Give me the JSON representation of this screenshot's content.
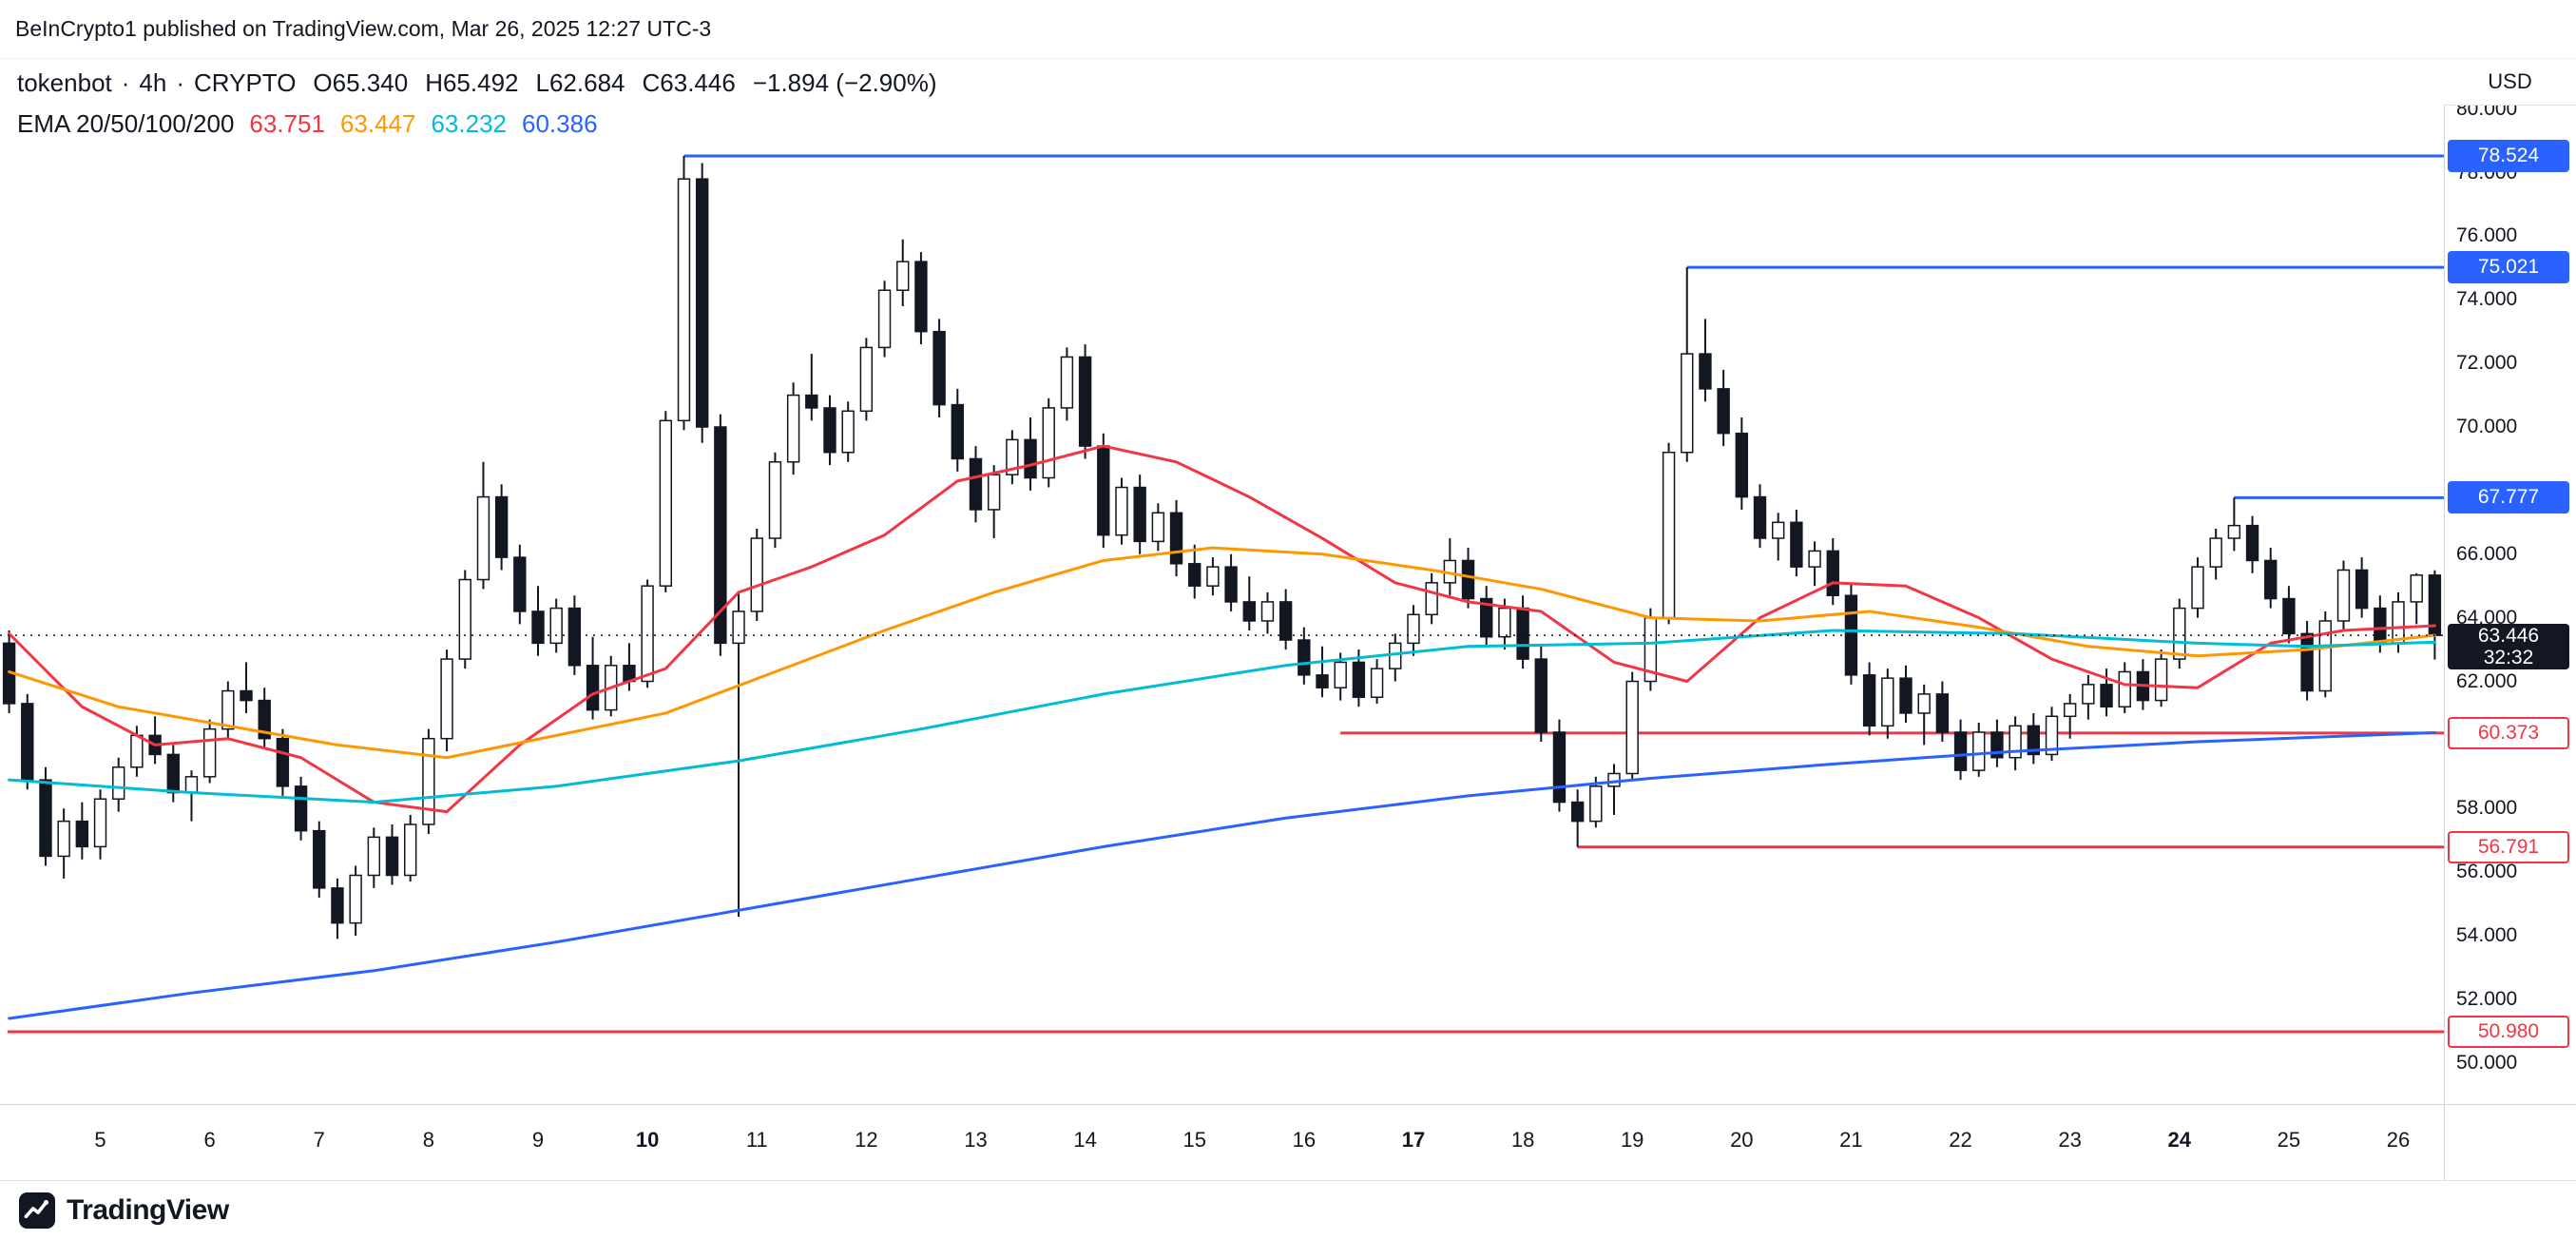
{
  "topbar": {
    "text": "BeInCrypto1 published on TradingView.com, Mar 26, 2025 12:27 UTC-3"
  },
  "legend": {
    "symbol": "tokenbot",
    "separator": "·",
    "interval": "4h",
    "market": "CRYPTO",
    "o_label": "O",
    "o": "65.340",
    "h_label": "H",
    "h": "65.492",
    "l_label": "L",
    "l": "62.684",
    "c_label": "C",
    "c": "63.446",
    "change": "−1.894 (−2.90%)",
    "ema_title": "EMA 20/50/100/200"
  },
  "axis": {
    "currency": "USD"
  },
  "footer": {
    "brand": "TradingView"
  },
  "chart_data": {
    "type": "candlestick",
    "symbol": "tokenbot",
    "interval": "4h",
    "market": "CRYPTO",
    "colors": {
      "ink": "#131722",
      "up_fill": "#FFFFFF",
      "resistance": "#2962FF",
      "support": "#F23645"
    },
    "y_axis": {
      "domain_top": 81.574,
      "domain_bottom": 48.707,
      "ticks": [
        80,
        78,
        76,
        74,
        72,
        70,
        66,
        64,
        62,
        58,
        56,
        54,
        52,
        50
      ]
    },
    "x_axis": {
      "days": [
        {
          "label": "5",
          "index": 5,
          "bold": false
        },
        {
          "label": "6",
          "index": 11,
          "bold": false
        },
        {
          "label": "7",
          "index": 17,
          "bold": false
        },
        {
          "label": "8",
          "index": 23,
          "bold": false
        },
        {
          "label": "9",
          "index": 29,
          "bold": false
        },
        {
          "label": "10",
          "index": 35,
          "bold": true
        },
        {
          "label": "11",
          "index": 41,
          "bold": false
        },
        {
          "label": "12",
          "index": 47,
          "bold": false
        },
        {
          "label": "13",
          "index": 53,
          "bold": false
        },
        {
          "label": "14",
          "index": 59,
          "bold": false
        },
        {
          "label": "15",
          "index": 65,
          "bold": false
        },
        {
          "label": "16",
          "index": 71,
          "bold": false
        },
        {
          "label": "17",
          "index": 77,
          "bold": true
        },
        {
          "label": "18",
          "index": 83,
          "bold": false
        },
        {
          "label": "19",
          "index": 89,
          "bold": false
        },
        {
          "label": "20",
          "index": 95,
          "bold": false
        },
        {
          "label": "21",
          "index": 101,
          "bold": false
        },
        {
          "label": "22",
          "index": 107,
          "bold": false
        },
        {
          "label": "23",
          "index": 113,
          "bold": false
        },
        {
          "label": "24",
          "index": 119,
          "bold": true
        },
        {
          "label": "25",
          "index": 125,
          "bold": false
        },
        {
          "label": "26",
          "index": 131,
          "bold": false
        }
      ]
    },
    "current_price": {
      "value": 63.446,
      "label": "63.446",
      "countdown": "32:32"
    },
    "ohlc_current": {
      "open": 65.34,
      "high": 65.492,
      "low": 62.684,
      "close": 63.446,
      "change": -1.894,
      "change_pct": -2.9
    },
    "levels": [
      {
        "price": 78.524,
        "label": "78.524",
        "kind": "resistance",
        "start_index": 37
      },
      {
        "price": 75.021,
        "label": "75.021",
        "kind": "resistance",
        "start_index": 92
      },
      {
        "price": 67.777,
        "label": "67.777",
        "kind": "resistance",
        "start_index": 122
      },
      {
        "price": 60.373,
        "label": "60.373",
        "kind": "support",
        "start_index": 73
      },
      {
        "price": 56.791,
        "label": "56.791",
        "kind": "support",
        "start_index": 86
      },
      {
        "price": 50.98,
        "label": "50.980",
        "kind": "support",
        "start_index": 0
      }
    ],
    "emas": [
      {
        "period": 20,
        "value": "63.751",
        "color": "#F23645",
        "points": [
          [
            0,
            63.5
          ],
          [
            4,
            61.2
          ],
          [
            8,
            60.0
          ],
          [
            12,
            60.2
          ],
          [
            16,
            59.6
          ],
          [
            20,
            58.2
          ],
          [
            24,
            57.9
          ],
          [
            28,
            60.0
          ],
          [
            32,
            61.6
          ],
          [
            36,
            62.4
          ],
          [
            40,
            64.8
          ],
          [
            44,
            65.6
          ],
          [
            48,
            66.6
          ],
          [
            52,
            68.3
          ],
          [
            56,
            68.8
          ],
          [
            60,
            69.4
          ],
          [
            64,
            68.9
          ],
          [
            68,
            67.8
          ],
          [
            72,
            66.5
          ],
          [
            76,
            65.1
          ],
          [
            80,
            64.5
          ],
          [
            84,
            64.2
          ],
          [
            88,
            62.6
          ],
          [
            92,
            62.0
          ],
          [
            96,
            64.0
          ],
          [
            100,
            65.1
          ],
          [
            104,
            65.0
          ],
          [
            108,
            64.0
          ],
          [
            112,
            62.7
          ],
          [
            116,
            61.9
          ],
          [
            120,
            61.8
          ],
          [
            124,
            63.2
          ],
          [
            128,
            63.6
          ],
          [
            133,
            63.751
          ]
        ]
      },
      {
        "period": 50,
        "value": "63.447",
        "color": "#FF9800",
        "points": [
          [
            0,
            62.3
          ],
          [
            6,
            61.2
          ],
          [
            12,
            60.6
          ],
          [
            18,
            60.0
          ],
          [
            24,
            59.6
          ],
          [
            30,
            60.3
          ],
          [
            36,
            61.0
          ],
          [
            42,
            62.3
          ],
          [
            48,
            63.6
          ],
          [
            54,
            64.8
          ],
          [
            60,
            65.8
          ],
          [
            66,
            66.2
          ],
          [
            72,
            66.0
          ],
          [
            78,
            65.5
          ],
          [
            84,
            64.9
          ],
          [
            90,
            64.0
          ],
          [
            96,
            63.9
          ],
          [
            102,
            64.2
          ],
          [
            108,
            63.7
          ],
          [
            114,
            63.1
          ],
          [
            120,
            62.8
          ],
          [
            126,
            63.0
          ],
          [
            133,
            63.447
          ]
        ]
      },
      {
        "period": 100,
        "value": "63.232",
        "color": "#00BCD4",
        "points": [
          [
            0,
            58.9
          ],
          [
            10,
            58.5
          ],
          [
            20,
            58.2
          ],
          [
            30,
            58.7
          ],
          [
            40,
            59.5
          ],
          [
            50,
            60.5
          ],
          [
            60,
            61.6
          ],
          [
            70,
            62.5
          ],
          [
            80,
            63.1
          ],
          [
            90,
            63.2
          ],
          [
            100,
            63.6
          ],
          [
            110,
            63.5
          ],
          [
            120,
            63.2
          ],
          [
            126,
            63.1
          ],
          [
            133,
            63.232
          ]
        ]
      },
      {
        "period": 200,
        "value": "60.386",
        "color": "#2962FF",
        "points": [
          [
            0,
            51.4
          ],
          [
            10,
            52.2
          ],
          [
            20,
            52.9
          ],
          [
            30,
            53.8
          ],
          [
            40,
            54.8
          ],
          [
            50,
            55.8
          ],
          [
            60,
            56.8
          ],
          [
            70,
            57.7
          ],
          [
            80,
            58.4
          ],
          [
            90,
            58.95
          ],
          [
            100,
            59.4
          ],
          [
            110,
            59.8
          ],
          [
            120,
            60.1
          ],
          [
            133,
            60.386
          ]
        ]
      }
    ],
    "candles": [
      [
        63.2,
        63.6,
        61.0,
        61.3
      ],
      [
        61.3,
        61.6,
        58.6,
        58.9
      ],
      [
        58.9,
        59.3,
        56.2,
        56.5
      ],
      [
        56.5,
        58.0,
        55.8,
        57.6
      ],
      [
        57.6,
        58.2,
        56.4,
        56.8
      ],
      [
        56.8,
        58.6,
        56.4,
        58.3
      ],
      [
        58.3,
        59.6,
        57.9,
        59.3
      ],
      [
        59.3,
        60.6,
        59.0,
        60.3
      ],
      [
        60.3,
        60.9,
        59.4,
        59.7
      ],
      [
        59.7,
        60.0,
        58.2,
        58.5
      ],
      [
        58.5,
        59.2,
        57.6,
        59.0
      ],
      [
        59.0,
        60.8,
        58.8,
        60.5
      ],
      [
        60.5,
        62.0,
        60.2,
        61.7
      ],
      [
        61.7,
        62.6,
        61.0,
        61.4
      ],
      [
        61.4,
        61.8,
        59.9,
        60.2
      ],
      [
        60.2,
        60.5,
        58.4,
        58.7
      ],
      [
        58.7,
        59.0,
        57.0,
        57.3
      ],
      [
        57.3,
        57.6,
        55.2,
        55.5
      ],
      [
        55.5,
        55.8,
        53.9,
        54.4
      ],
      [
        54.4,
        56.2,
        54.0,
        55.9
      ],
      [
        55.9,
        57.4,
        55.5,
        57.1
      ],
      [
        57.1,
        57.5,
        55.6,
        55.9
      ],
      [
        55.9,
        57.8,
        55.7,
        57.5
      ],
      [
        57.5,
        60.5,
        57.2,
        60.2
      ],
      [
        60.2,
        63.0,
        59.8,
        62.7
      ],
      [
        62.7,
        65.5,
        62.4,
        65.2
      ],
      [
        65.2,
        68.9,
        64.9,
        67.8
      ],
      [
        67.8,
        68.2,
        65.5,
        65.9
      ],
      [
        65.9,
        66.3,
        63.8,
        64.2
      ],
      [
        64.2,
        65.0,
        62.8,
        63.2
      ],
      [
        63.2,
        64.6,
        62.9,
        64.3
      ],
      [
        64.3,
        64.7,
        62.2,
        62.5
      ],
      [
        62.5,
        63.4,
        60.8,
        61.1
      ],
      [
        61.1,
        62.8,
        60.9,
        62.5
      ],
      [
        62.5,
        63.2,
        61.7,
        62.0
      ],
      [
        62.0,
        65.2,
        61.8,
        65.0
      ],
      [
        65.0,
        70.5,
        64.8,
        70.2
      ],
      [
        70.2,
        78.524,
        69.9,
        77.8
      ],
      [
        77.8,
        78.3,
        69.5,
        70.0
      ],
      [
        70.0,
        70.4,
        62.8,
        63.2
      ],
      [
        63.2,
        64.8,
        54.6,
        64.2
      ],
      [
        64.2,
        66.8,
        63.9,
        66.5
      ],
      [
        66.5,
        69.2,
        66.2,
        68.9
      ],
      [
        68.9,
        71.4,
        68.5,
        71.0
      ],
      [
        71.0,
        72.3,
        70.2,
        70.6
      ],
      [
        70.6,
        71.0,
        68.8,
        69.2
      ],
      [
        69.2,
        70.8,
        68.9,
        70.5
      ],
      [
        70.5,
        72.8,
        70.2,
        72.5
      ],
      [
        72.5,
        74.6,
        72.2,
        74.3
      ],
      [
        74.3,
        75.9,
        73.8,
        75.2
      ],
      [
        75.2,
        75.5,
        72.6,
        73.0
      ],
      [
        73.0,
        73.4,
        70.3,
        70.7
      ],
      [
        70.7,
        71.2,
        68.6,
        69.0
      ],
      [
        69.0,
        69.4,
        67.0,
        67.4
      ],
      [
        67.4,
        68.8,
        66.5,
        68.5
      ],
      [
        68.5,
        69.9,
        68.2,
        69.6
      ],
      [
        69.6,
        70.3,
        68.0,
        68.4
      ],
      [
        68.4,
        70.9,
        68.1,
        70.6
      ],
      [
        70.6,
        72.5,
        70.2,
        72.2
      ],
      [
        72.2,
        72.6,
        69.0,
        69.4
      ],
      [
        69.4,
        69.8,
        66.2,
        66.6
      ],
      [
        66.6,
        68.4,
        66.3,
        68.1
      ],
      [
        68.1,
        68.5,
        66.0,
        66.4
      ],
      [
        66.4,
        67.6,
        66.1,
        67.3
      ],
      [
        67.3,
        67.7,
        65.3,
        65.7
      ],
      [
        65.7,
        66.3,
        64.6,
        65.0
      ],
      [
        65.0,
        65.9,
        64.7,
        65.6
      ],
      [
        65.6,
        66.0,
        64.2,
        64.5
      ],
      [
        64.5,
        65.3,
        63.6,
        63.9
      ],
      [
        63.9,
        64.8,
        63.5,
        64.5
      ],
      [
        64.5,
        64.9,
        63.0,
        63.3
      ],
      [
        63.3,
        63.7,
        61.9,
        62.2
      ],
      [
        62.2,
        63.1,
        61.5,
        61.8
      ],
      [
        61.8,
        62.9,
        61.4,
        62.6
      ],
      [
        62.6,
        63.0,
        61.2,
        61.5
      ],
      [
        61.5,
        62.7,
        61.3,
        62.4
      ],
      [
        62.4,
        63.5,
        62.0,
        63.2
      ],
      [
        63.2,
        64.4,
        62.8,
        64.1
      ],
      [
        64.1,
        65.4,
        63.8,
        65.1
      ],
      [
        65.1,
        66.5,
        64.7,
        65.8
      ],
      [
        65.8,
        66.2,
        64.3,
        64.6
      ],
      [
        64.6,
        65.0,
        63.1,
        63.4
      ],
      [
        63.4,
        64.6,
        63.0,
        64.3
      ],
      [
        64.3,
        64.7,
        62.4,
        62.7
      ],
      [
        62.7,
        63.1,
        60.1,
        60.4
      ],
      [
        60.4,
        60.8,
        57.9,
        58.2
      ],
      [
        58.2,
        58.6,
        56.791,
        57.6
      ],
      [
        57.6,
        59.0,
        57.4,
        58.7
      ],
      [
        58.7,
        59.4,
        57.8,
        59.1
      ],
      [
        59.1,
        62.3,
        58.9,
        62.0
      ],
      [
        62.0,
        64.3,
        61.7,
        64.0
      ],
      [
        64.0,
        69.5,
        63.8,
        69.2
      ],
      [
        69.2,
        75.021,
        68.9,
        72.3
      ],
      [
        72.3,
        73.4,
        70.8,
        71.2
      ],
      [
        71.2,
        71.8,
        69.4,
        69.8
      ],
      [
        69.8,
        70.3,
        67.4,
        67.8
      ],
      [
        67.8,
        68.2,
        66.2,
        66.5
      ],
      [
        66.5,
        67.3,
        65.8,
        67.0
      ],
      [
        67.0,
        67.4,
        65.3,
        65.6
      ],
      [
        65.6,
        66.4,
        65.0,
        66.1
      ],
      [
        66.1,
        66.5,
        64.4,
        64.7
      ],
      [
        64.7,
        65.1,
        61.9,
        62.2
      ],
      [
        62.2,
        62.6,
        60.3,
        60.6
      ],
      [
        60.6,
        62.4,
        60.2,
        62.1
      ],
      [
        62.1,
        62.5,
        60.7,
        61.0
      ],
      [
        61.0,
        61.9,
        60.0,
        61.6
      ],
      [
        61.6,
        62.0,
        60.1,
        60.4
      ],
      [
        60.4,
        60.8,
        58.9,
        59.2
      ],
      [
        59.2,
        60.7,
        59.0,
        60.4
      ],
      [
        60.4,
        60.8,
        59.3,
        59.6
      ],
      [
        59.6,
        60.9,
        59.2,
        60.6
      ],
      [
        60.6,
        61.0,
        59.4,
        59.7
      ],
      [
        59.7,
        61.2,
        59.5,
        60.9
      ],
      [
        60.9,
        61.6,
        60.2,
        61.3
      ],
      [
        61.3,
        62.2,
        60.8,
        61.9
      ],
      [
        61.9,
        62.4,
        60.9,
        61.2
      ],
      [
        61.2,
        62.6,
        61.0,
        62.3
      ],
      [
        62.3,
        62.7,
        61.1,
        61.4
      ],
      [
        61.4,
        63.0,
        61.2,
        62.7
      ],
      [
        62.7,
        64.6,
        62.4,
        64.3
      ],
      [
        64.3,
        65.9,
        64.0,
        65.6
      ],
      [
        65.6,
        66.8,
        65.2,
        66.5
      ],
      [
        66.5,
        67.777,
        66.1,
        66.9
      ],
      [
        66.9,
        67.2,
        65.4,
        65.8
      ],
      [
        65.8,
        66.2,
        64.3,
        64.6
      ],
      [
        64.6,
        65.0,
        63.2,
        63.5
      ],
      [
        63.5,
        63.9,
        61.4,
        61.7
      ],
      [
        61.7,
        64.2,
        61.5,
        63.9
      ],
      [
        63.9,
        65.8,
        63.6,
        65.5
      ],
      [
        65.5,
        65.9,
        64.0,
        64.3
      ],
      [
        64.3,
        64.7,
        62.9,
        63.2
      ],
      [
        63.2,
        64.8,
        62.9,
        64.5
      ],
      [
        64.5,
        65.4,
        63.8,
        65.34
      ],
      [
        65.34,
        65.492,
        62.684,
        63.446
      ]
    ]
  }
}
